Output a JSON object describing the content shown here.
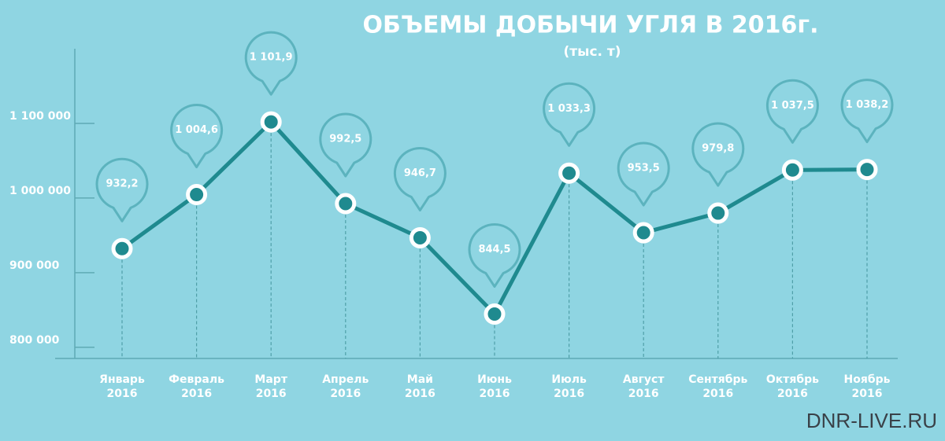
{
  "chart_data": {
    "type": "line",
    "title": "ОБЪЕМЫ ДОБЫЧИ УГЛЯ В 2016г.",
    "subtitle": "(тыс. т)",
    "categories": [
      "Январь\n2016",
      "Февраль\n2016",
      "Март\n2016",
      "Апрель\n2016",
      "Май\n2016",
      "Июнь\n2016",
      "Июль\n2016",
      "Август\n2016",
      "Сентябрь\n2016",
      "Октябрь\n2016",
      "Ноябрь\n2016"
    ],
    "values": [
      932200,
      1004600,
      1101900,
      992500,
      946700,
      844500,
      1033300,
      953500,
      979800,
      1037500,
      1038200
    ],
    "value_labels": [
      "932,2",
      "1 004,6",
      "1 101,9",
      "992,5",
      "946,7",
      "844,5",
      "1 033,3",
      "953,5",
      "979,8",
      "1 037,5",
      "1 038,2"
    ],
    "color": "#1f8a8f",
    "ylim": [
      785000,
      1200000
    ],
    "yticks": [
      {
        "value": 800000,
        "label": "800 000"
      },
      {
        "value": 900000,
        "label": "900 000"
      },
      {
        "value": 1000000,
        "label": "1 000 000"
      },
      {
        "value": 1100000,
        "label": "1 100 000"
      }
    ]
  },
  "watermark": "DNR-LIVE.RU"
}
